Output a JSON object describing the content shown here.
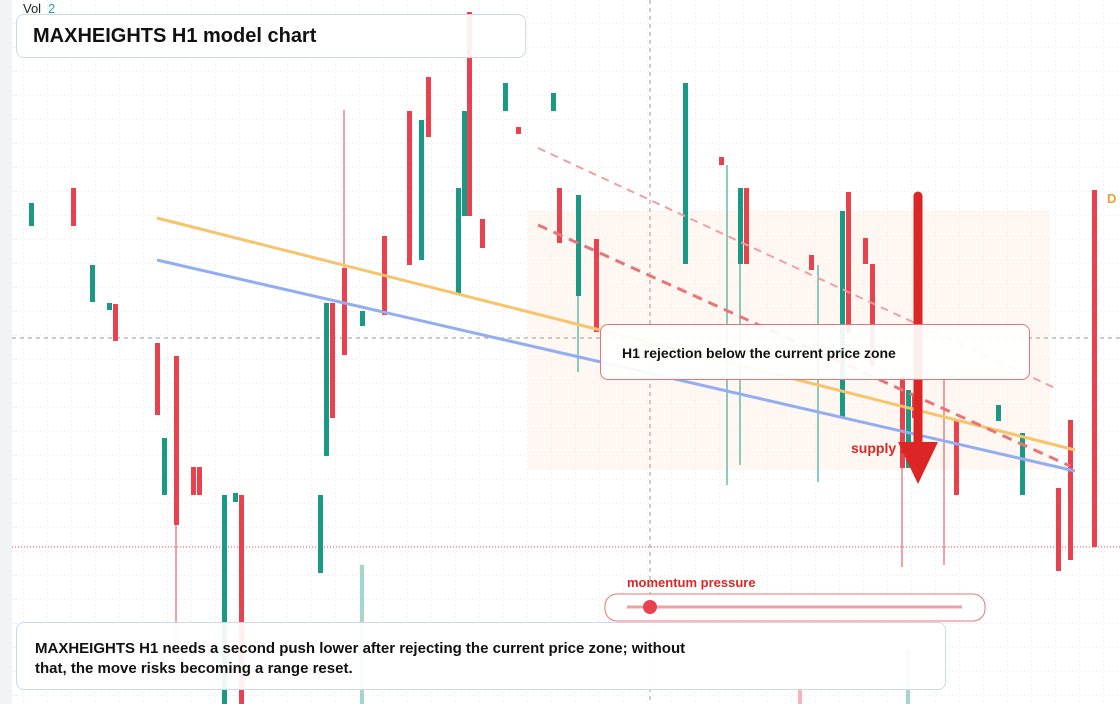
{
  "header": {
    "vol_label": "Vol",
    "vol_value": "2",
    "title": "MAXHEIGHTS H1 model chart"
  },
  "annotations": {
    "rejection": "H1 rejection below the current price zone",
    "supply": "supply zone",
    "momentum": "momentum pressure",
    "edge_tag": "D"
  },
  "footer": {
    "text": "MAXHEIGHTS H1 needs a second push lower after rejecting the current price zone; without that, the move risks becoming a range reset."
  }
}
